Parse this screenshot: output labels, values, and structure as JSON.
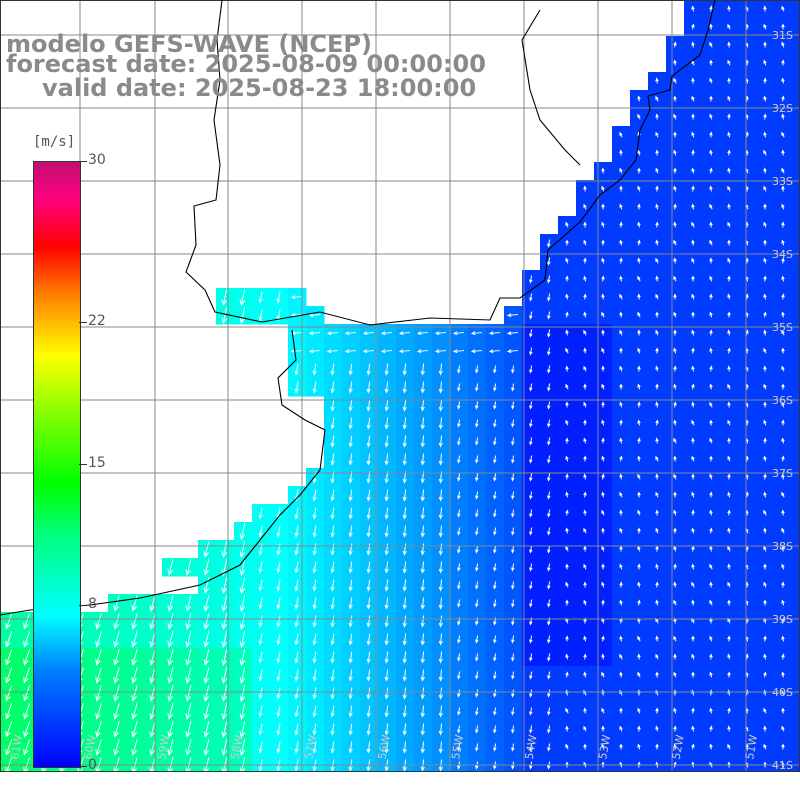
{
  "header": {
    "model_line": "modelo GEFS-WAVE (NCEP)",
    "forecast_line": "forecast date: 2025-08-09 00:00:00",
    "valid_line": "valid date: 2025-08-23 18:00:00"
  },
  "colorbar": {
    "unit": "[m/s]",
    "ticks": [
      {
        "label": "30",
        "value": 30
      },
      {
        "label": "22",
        "value": 22
      },
      {
        "label": "15",
        "value": 15
      },
      {
        "label": "8",
        "value": 8
      },
      {
        "label": "0",
        "value": 0
      }
    ],
    "min": 0,
    "max": 30
  },
  "map": {
    "lon_labels": [
      "61W",
      "60W",
      "59W",
      "58W",
      "57W",
      "56W",
      "55W",
      "54W",
      "53W",
      "52W",
      "51W"
    ],
    "lat_labels": [
      "31S",
      "32S",
      "33S",
      "34S",
      "35S",
      "36S",
      "37S",
      "38S",
      "39S",
      "40S",
      "41S"
    ],
    "colors": {
      "land": "#ffffff",
      "coastline": "#000000",
      "grid": "#888888",
      "high_wind": "#00ee22",
      "mid_wind": "#00ccff",
      "low_wind": "#0022ee"
    }
  }
}
